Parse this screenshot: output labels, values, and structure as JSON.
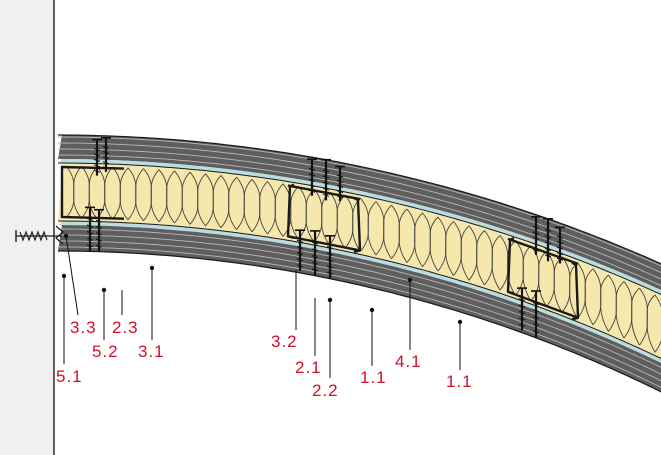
{
  "colors": {
    "callout": "#d0102a",
    "board": "#5e5e5e",
    "board_seam": "#b8b8b8",
    "insulation": "#f6e7ad",
    "insulation_line": "#444444",
    "wall": "#f0f0f0",
    "profile": "#1a1a1a",
    "foil": "#b9dde0"
  },
  "callouts": [
    {
      "id": "c-5-1",
      "text": "5.1"
    },
    {
      "id": "c-3-3",
      "text": "3.3"
    },
    {
      "id": "c-5-2",
      "text": "5.2"
    },
    {
      "id": "c-2-3",
      "text": "2.3"
    },
    {
      "id": "c-3-1",
      "text": "3.1"
    },
    {
      "id": "c-3-2",
      "text": "3.2"
    },
    {
      "id": "c-2-1",
      "text": "2.1"
    },
    {
      "id": "c-2-2",
      "text": "2.2"
    },
    {
      "id": "c-1-1a",
      "text": "1.1"
    },
    {
      "id": "c-4-1",
      "text": "4.1"
    },
    {
      "id": "c-1-1b",
      "text": "1.1"
    }
  ]
}
